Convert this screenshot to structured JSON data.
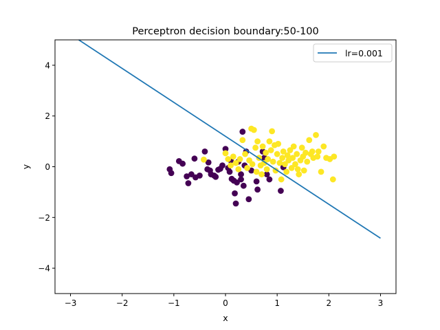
{
  "chart_data": {
    "type": "scatter",
    "title": "Perceptron decision boundary:50-100",
    "xlabel": "x",
    "ylabel": "y",
    "xlim": [
      -3.3,
      3.3
    ],
    "ylim": [
      -5,
      5
    ],
    "xticks": [
      -3,
      -2,
      -1,
      0,
      1,
      2,
      3
    ],
    "yticks": [
      -4,
      -2,
      0,
      2,
      4
    ],
    "xtick_labels": [
      "−3",
      "−2",
      "−1",
      "0",
      "1",
      "2",
      "3"
    ],
    "ytick_labels": [
      "−4",
      "−2",
      "0",
      "2",
      "4"
    ],
    "grid": false,
    "legend_position": "top-right",
    "line": {
      "name": "lr=0.001",
      "color": "#1f77b4",
      "x": [
        -2.84,
        3.0
      ],
      "y": [
        5.0,
        -2.82
      ]
    },
    "series": [
      {
        "class": 0,
        "color": "#440154",
        "points": [
          [
            -1.08,
            -0.1
          ],
          [
            -1.05,
            -0.25
          ],
          [
            -0.9,
            0.22
          ],
          [
            -0.83,
            0.12
          ],
          [
            -0.75,
            -0.38
          ],
          [
            -0.72,
            -0.65
          ],
          [
            -0.66,
            -0.3
          ],
          [
            -0.6,
            0.32
          ],
          [
            -0.58,
            -0.42
          ],
          [
            -0.5,
            -0.35
          ],
          [
            -0.4,
            0.6
          ],
          [
            -0.33,
            0.17
          ],
          [
            -0.3,
            -0.15
          ],
          [
            -0.28,
            -0.3
          ],
          [
            -0.22,
            -0.35
          ],
          [
            -0.19,
            -0.4
          ],
          [
            -0.14,
            -0.12
          ],
          [
            -0.1,
            -0.08
          ],
          [
            -0.06,
            0.05
          ],
          [
            0.0,
            0.7
          ],
          [
            0.05,
            -0.05
          ],
          [
            0.08,
            -0.2
          ],
          [
            0.1,
            0.25
          ],
          [
            0.12,
            -0.48
          ],
          [
            0.16,
            -0.55
          ],
          [
            0.18,
            -1.05
          ],
          [
            0.2,
            -1.45
          ],
          [
            0.22,
            -0.62
          ],
          [
            0.25,
            0.2
          ],
          [
            0.3,
            -0.3
          ],
          [
            0.33,
            1.38
          ],
          [
            0.35,
            -0.75
          ],
          [
            0.37,
            0.05
          ],
          [
            0.4,
            0.6
          ],
          [
            0.45,
            -1.28
          ],
          [
            0.5,
            -0.15
          ],
          [
            0.6,
            -0.58
          ],
          [
            0.62,
            -0.9
          ],
          [
            0.72,
            0.6
          ],
          [
            0.75,
            0.35
          ],
          [
            0.8,
            -0.3
          ],
          [
            0.85,
            -0.5
          ],
          [
            1.07,
            -0.95
          ],
          [
            1.12,
            -0.02
          ],
          [
            0.3,
            -0.5
          ],
          [
            -0.35,
            -0.1
          ]
        ]
      },
      {
        "class": 1,
        "color": "#fde725",
        "points": [
          [
            -0.42,
            0.28
          ],
          [
            0.0,
            0.53
          ],
          [
            0.05,
            0.3
          ],
          [
            0.1,
            0.05
          ],
          [
            0.15,
            0.4
          ],
          [
            0.2,
            0.15
          ],
          [
            0.25,
            -0.1
          ],
          [
            0.28,
            0.3
          ],
          [
            0.33,
            1.05
          ],
          [
            0.38,
            0.5
          ],
          [
            0.42,
            -0.05
          ],
          [
            0.46,
            0.25
          ],
          [
            0.5,
            1.5
          ],
          [
            0.52,
            0.1
          ],
          [
            0.55,
            1.45
          ],
          [
            0.58,
            0.75
          ],
          [
            0.6,
            -0.2
          ],
          [
            0.62,
            1.0
          ],
          [
            0.65,
            0.35
          ],
          [
            0.68,
            0.05
          ],
          [
            0.7,
            -0.3
          ],
          [
            0.72,
            0.8
          ],
          [
            0.75,
            0.15
          ],
          [
            0.78,
            0.55
          ],
          [
            0.8,
            -0.1
          ],
          [
            0.82,
            0.3
          ],
          [
            0.85,
            1.0
          ],
          [
            0.88,
            0.65
          ],
          [
            0.9,
            1.4
          ],
          [
            0.92,
            0.2
          ],
          [
            0.95,
            0.85
          ],
          [
            0.97,
            -0.15
          ],
          [
            1.0,
            0.5
          ],
          [
            1.02,
            0.9
          ],
          [
            1.05,
            0.15
          ],
          [
            1.08,
            -0.5
          ],
          [
            1.1,
            0.35
          ],
          [
            1.12,
            0.6
          ],
          [
            1.15,
            0.1
          ],
          [
            1.18,
            -0.2
          ],
          [
            1.2,
            0.45
          ],
          [
            1.22,
            0.25
          ],
          [
            1.25,
            0.65
          ],
          [
            1.28,
            -0.05
          ],
          [
            1.3,
            0.35
          ],
          [
            1.32,
            0.8
          ],
          [
            1.35,
            0.1
          ],
          [
            1.38,
            0.5
          ],
          [
            1.42,
            -0.3
          ],
          [
            1.45,
            0.25
          ],
          [
            1.48,
            0.75
          ],
          [
            1.5,
            0.4
          ],
          [
            1.52,
            -0.15
          ],
          [
            1.55,
            0.55
          ],
          [
            1.58,
            0.2
          ],
          [
            1.62,
            1.05
          ],
          [
            1.65,
            0.5
          ],
          [
            1.7,
            0.35
          ],
          [
            1.75,
            1.25
          ],
          [
            1.8,
            0.6
          ],
          [
            1.85,
            -0.2
          ],
          [
            1.9,
            0.8
          ],
          [
            1.95,
            0.35
          ],
          [
            2.02,
            0.3
          ],
          [
            2.08,
            -0.5
          ],
          [
            2.1,
            0.4
          ],
          [
            1.68,
            0.6
          ],
          [
            1.78,
            0.4
          ],
          [
            1.4,
            -0.1
          ]
        ]
      }
    ]
  }
}
